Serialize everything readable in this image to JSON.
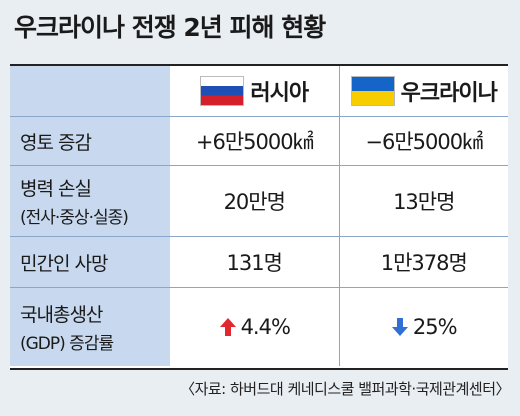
{
  "title": "우크라이나 전쟁 2년 피해 현황",
  "columns": {
    "russia": "러시아",
    "ukraine": "우크라이나"
  },
  "rows": {
    "territory": {
      "label": "영토 증감",
      "russia": "+6만5000㎢",
      "ukraine": "−6만5000㎢"
    },
    "military": {
      "label": "병력 손실",
      "sublabel": "(전사·중상·실종)",
      "russia": "20만명",
      "ukraine": "13만명"
    },
    "civilian": {
      "label": "민간인 사망",
      "russia": "131명",
      "ukraine": "1만378명"
    },
    "gdp": {
      "label": "국내총생산",
      "sublabel": "(GDP) 증감률",
      "russia": "4.4%",
      "ukraine": "25%"
    }
  },
  "colors": {
    "up_arrow": "#e0282e",
    "down_arrow": "#2f6fd6",
    "label_bg": "#c8d9ef"
  },
  "source": "〈자료: 하버드대 케네디스쿨 밸퍼과학·국제관계센터〉"
}
